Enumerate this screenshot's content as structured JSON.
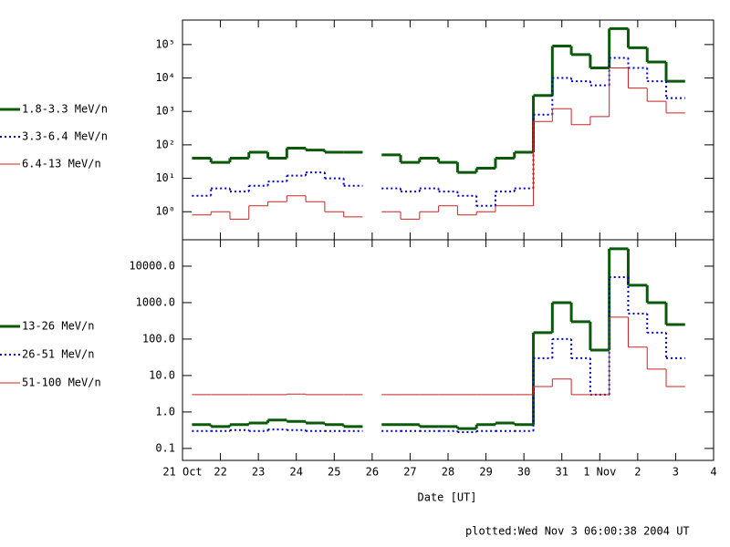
{
  "chart_data": [
    {
      "type": "line",
      "log_y": true,
      "x": [
        0.5,
        1,
        1.5,
        2,
        2.5,
        3,
        3.5,
        4,
        4.5,
        5,
        5.5,
        6,
        6.5,
        7,
        7.5,
        8,
        8.5,
        9,
        9.5,
        10,
        10.5,
        11,
        11.5,
        12,
        12.5,
        13
      ],
      "xlim": [
        0,
        14
      ],
      "xticks": [
        0,
        1,
        2,
        3,
        4,
        5,
        6,
        7,
        8,
        9,
        10,
        11,
        12,
        13,
        14
      ],
      "ylim": [
        0.145,
        540000
      ],
      "yticks": [
        {
          "value": 1,
          "label": "10⁰"
        },
        {
          "value": 10,
          "label": "10¹"
        },
        {
          "value": 100,
          "label": "10²"
        },
        {
          "value": 1000,
          "label": "10³"
        },
        {
          "value": 10000,
          "label": "10⁴"
        },
        {
          "value": 100000,
          "label": "10⁵"
        }
      ],
      "series": [
        {
          "name": "1.8-3.3 MeV/n",
          "color": "#0b5a0b",
          "linestyle": "solid",
          "values": [
            40,
            30,
            40,
            60,
            40,
            80,
            70,
            60,
            60,
            null,
            50,
            30,
            40,
            30,
            15,
            20,
            40,
            60,
            3000,
            90000,
            50000,
            20000,
            300000,
            80000,
            30000,
            8000
          ]
        },
        {
          "name": "3.3-6.4 MeV/n",
          "color": "#0000cc",
          "linestyle": "dotted",
          "values": [
            3,
            5,
            4,
            6,
            8,
            12,
            15,
            10,
            6,
            null,
            5,
            4,
            5,
            4,
            3,
            1.5,
            4,
            5,
            800,
            10000,
            8000,
            6000,
            40000,
            20000,
            8000,
            2500
          ]
        },
        {
          "name": "6.4-13 MeV/n",
          "color": "#cc2222",
          "linestyle": "thin",
          "values": [
            0.8,
            1,
            0.6,
            1.5,
            2,
            3,
            2,
            1,
            0.7,
            null,
            1,
            0.6,
            1,
            1.5,
            0.8,
            1,
            1.5,
            1.5,
            500,
            1200,
            400,
            700,
            20000,
            5000,
            2000,
            900
          ]
        }
      ]
    },
    {
      "type": "line",
      "log_y": true,
      "xlabel": "Date [UT]",
      "x": [
        0.5,
        1,
        1.5,
        2,
        2.5,
        3,
        3.5,
        4,
        4.5,
        5,
        5.5,
        6,
        6.5,
        7,
        7.5,
        8,
        8.5,
        9,
        9.5,
        10,
        10.5,
        11,
        11.5,
        12,
        12.5,
        13
      ],
      "xlim": [
        0,
        14
      ],
      "xticks": [
        {
          "value": 0,
          "label": "21 Oct"
        },
        {
          "value": 1,
          "label": "22"
        },
        {
          "value": 2,
          "label": "23"
        },
        {
          "value": 3,
          "label": "24"
        },
        {
          "value": 4,
          "label": "25"
        },
        {
          "value": 5,
          "label": "26"
        },
        {
          "value": 6,
          "label": "27"
        },
        {
          "value": 7,
          "label": "28"
        },
        {
          "value": 8,
          "label": "29"
        },
        {
          "value": 9,
          "label": "30"
        },
        {
          "value": 10,
          "label": "31"
        },
        {
          "value": 11,
          "label": "1 Nov"
        },
        {
          "value": 12,
          "label": "2"
        },
        {
          "value": 13,
          "label": "3"
        },
        {
          "value": 14,
          "label": "4"
        }
      ],
      "ylim": [
        0.047,
        53000
      ],
      "yticks": [
        0.1,
        {
          "value": 1,
          "label": "1.0"
        },
        {
          "value": 10,
          "label": "10.0"
        },
        {
          "value": 100,
          "label": "100.0"
        },
        {
          "value": 1000,
          "label": "1000.0"
        },
        {
          "value": 10000,
          "label": "10000.0"
        }
      ],
      "series": [
        {
          "name": "13-26 MeV/n",
          "color": "#0b5a0b",
          "linestyle": "solid",
          "values": [
            0.45,
            0.4,
            0.45,
            0.5,
            0.6,
            0.55,
            0.5,
            0.45,
            0.4,
            null,
            0.45,
            0.45,
            0.4,
            0.4,
            0.35,
            0.45,
            0.5,
            0.45,
            150,
            1000,
            300,
            50,
            30000,
            3000,
            1000,
            250
          ]
        },
        {
          "name": "26-51 MeV/n",
          "color": "#0000cc",
          "linestyle": "dotted",
          "values": [
            0.3,
            0.3,
            0.32,
            0.3,
            0.33,
            0.32,
            0.3,
            0.3,
            0.3,
            null,
            0.3,
            0.3,
            0.3,
            0.3,
            0.28,
            0.3,
            0.3,
            0.3,
            30,
            100,
            30,
            3,
            5000,
            500,
            150,
            30
          ]
        },
        {
          "name": "51-100 MeV/n",
          "color": "#cc2222",
          "linestyle": "thin",
          "values": [
            3,
            3,
            3,
            3,
            3,
            3.1,
            3,
            3,
            3,
            null,
            3,
            3,
            3,
            3,
            3,
            3,
            3,
            3,
            5,
            8,
            3,
            3,
            400,
            60,
            15,
            5
          ]
        }
      ]
    }
  ],
  "footer": "plotted:Wed Nov  3 06:00:38 2004 UT"
}
